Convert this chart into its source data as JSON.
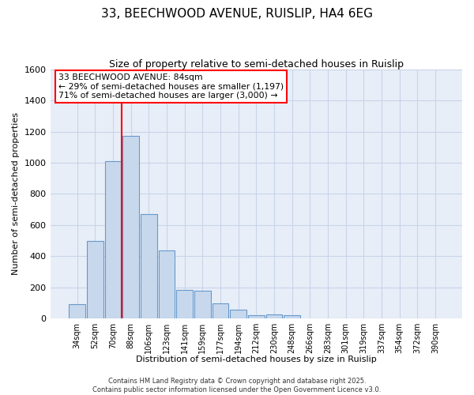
{
  "title": "33, BEECHWOOD AVENUE, RUISLIP, HA4 6EG",
  "subtitle": "Size of property relative to semi-detached houses in Ruislip",
  "xlabel": "Distribution of semi-detached houses by size in Ruislip",
  "ylabel": "Number of semi-detached properties",
  "categories": [
    "34sqm",
    "52sqm",
    "70sqm",
    "88sqm",
    "106sqm",
    "123sqm",
    "141sqm",
    "159sqm",
    "177sqm",
    "194sqm",
    "212sqm",
    "230sqm",
    "248sqm",
    "266sqm",
    "283sqm",
    "301sqm",
    "319sqm",
    "337sqm",
    "354sqm",
    "372sqm",
    "390sqm"
  ],
  "values": [
    90,
    500,
    1010,
    1175,
    670,
    435,
    185,
    180,
    95,
    55,
    20,
    25,
    18,
    0,
    0,
    0,
    0,
    0,
    0,
    0,
    0
  ],
  "bar_color": "#c8d8ec",
  "bar_edge_color": "#6699cc",
  "grid_color": "#c8d4e8",
  "ax_background_color": "#e8eef8",
  "fig_background_color": "#ffffff",
  "vline_color": "red",
  "vline_x_index": 3,
  "property_label": "33 BEECHWOOD AVENUE: 84sqm",
  "smaller_label": "← 29% of semi-detached houses are smaller (1,197)",
  "larger_label": "71% of semi-detached houses are larger (3,000) →",
  "ylim": [
    0,
    1600
  ],
  "yticks": [
    0,
    200,
    400,
    600,
    800,
    1000,
    1200,
    1400,
    1600
  ],
  "title_fontsize": 11,
  "subtitle_fontsize": 9,
  "footer": "Contains HM Land Registry data © Crown copyright and database right 2025.\nContains public sector information licensed under the Open Government Licence v3.0."
}
